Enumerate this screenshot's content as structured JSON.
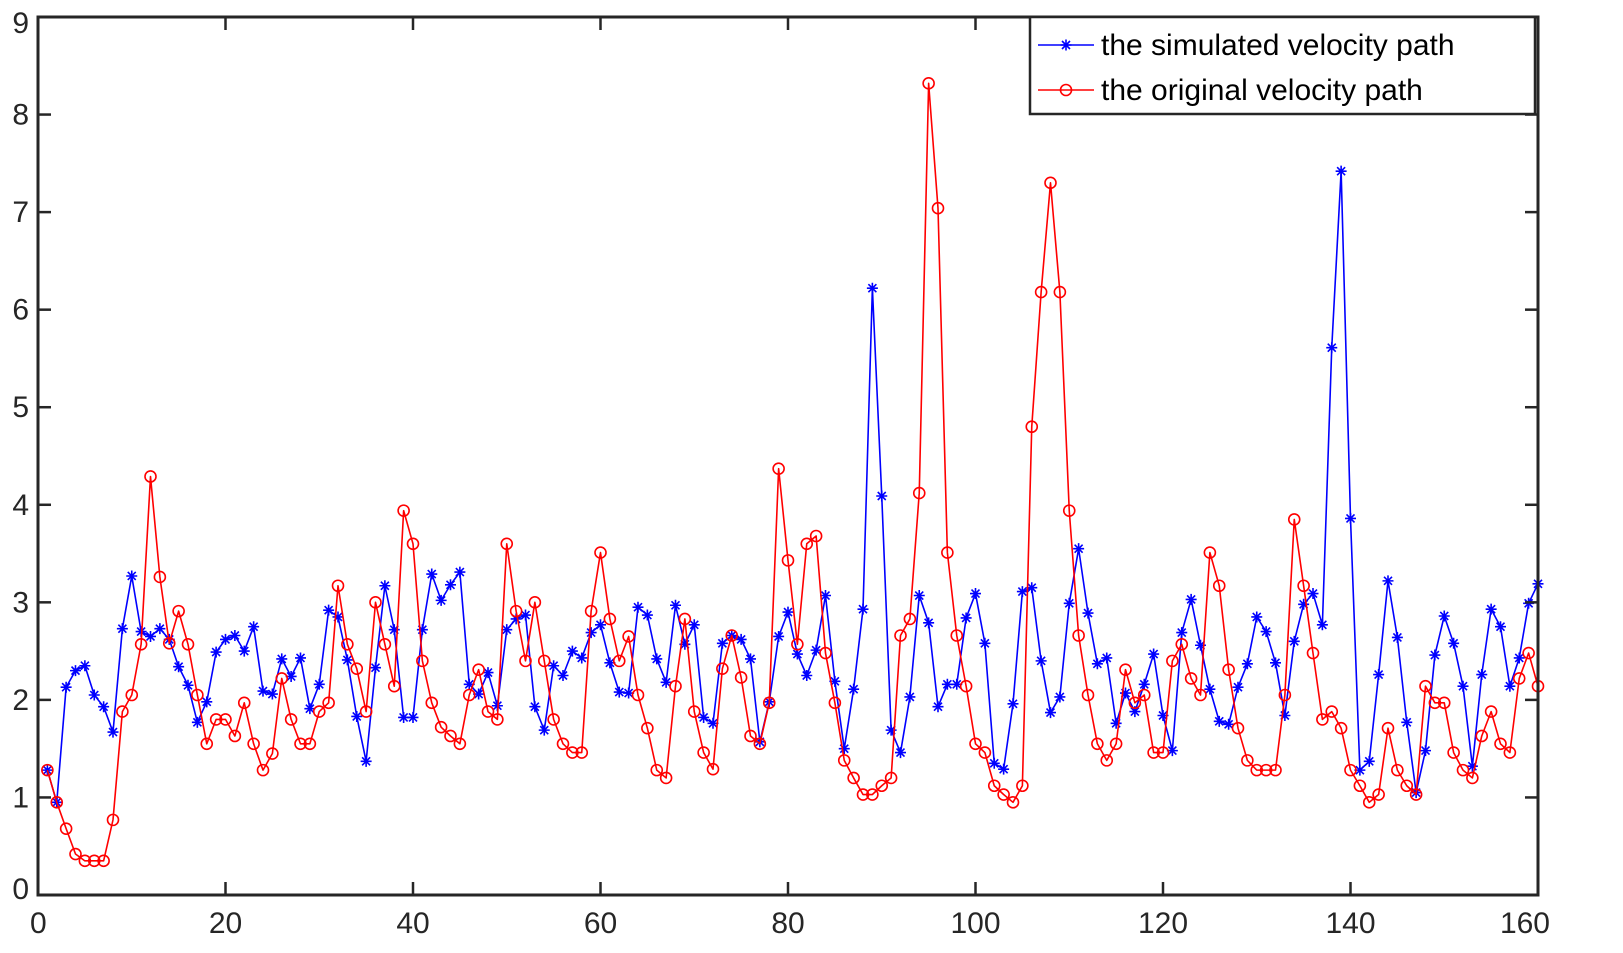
{
  "chart_data": {
    "type": "line",
    "title": "",
    "xlabel": "",
    "ylabel": "",
    "xlim": [
      0,
      160
    ],
    "ylim": [
      0,
      9
    ],
    "grid": false,
    "legend_position": "top-right",
    "x_ticks": [
      0,
      20,
      40,
      60,
      80,
      100,
      120,
      140,
      160
    ],
    "x_tick_labels": [
      "0",
      "20",
      "40",
      "60",
      "80",
      "100",
      "120",
      "140",
      "160"
    ],
    "y_ticks": [
      0,
      1,
      2,
      3,
      4,
      5,
      6,
      7,
      8,
      9
    ],
    "y_tick_labels": [
      "0",
      "1",
      "2",
      "3",
      "4",
      "5",
      "6",
      "7",
      "8",
      "9"
    ],
    "series": [
      {
        "name": "the simulated velocity path",
        "color": "#0000ff",
        "marker": "asterisk",
        "x_start": 1,
        "values": [
          1.28,
          0.95,
          2.13,
          2.3,
          2.35,
          2.05,
          1.93,
          1.67,
          2.73,
          3.27,
          2.7,
          2.65,
          2.73,
          2.62,
          2.34,
          2.15,
          1.77,
          1.98,
          2.49,
          2.62,
          2.66,
          2.5,
          2.75,
          2.09,
          2.06,
          2.42,
          2.24,
          2.43,
          1.91,
          2.16,
          2.92,
          2.85,
          2.41,
          1.83,
          1.37,
          2.33,
          3.17,
          2.72,
          1.82,
          1.82,
          2.72,
          3.29,
          3.02,
          3.18,
          3.31,
          2.16,
          2.06,
          2.28,
          1.94,
          2.72,
          2.83,
          2.87,
          1.93,
          1.69,
          2.35,
          2.25,
          2.5,
          2.43,
          2.69,
          2.77,
          2.38,
          2.08,
          2.07,
          2.95,
          2.87,
          2.42,
          2.18,
          2.97,
          2.57,
          2.77,
          1.82,
          1.76,
          2.58,
          2.66,
          2.62,
          2.42,
          1.57,
          1.98,
          2.65,
          2.9,
          2.47,
          2.25,
          2.51,
          3.07,
          2.19,
          1.5,
          2.11,
          2.93,
          6.22,
          4.09,
          1.69,
          1.46,
          2.03,
          3.07,
          2.79,
          1.93,
          2.16,
          2.16,
          2.84,
          3.09,
          2.58,
          1.35,
          1.29,
          1.96,
          3.11,
          3.15,
          2.4,
          1.87,
          2.03,
          2.99,
          3.55,
          2.89,
          2.37,
          2.43,
          1.76,
          2.07,
          1.88,
          2.16,
          2.47,
          1.84,
          1.48,
          2.69,
          3.03,
          2.56,
          2.11,
          1.78,
          1.75,
          2.13,
          2.37,
          2.85,
          2.7,
          2.38,
          1.84,
          2.6,
          2.98,
          3.09,
          2.77,
          5.61,
          7.42,
          3.86,
          1.28,
          1.37,
          2.26,
          3.22,
          2.64,
          1.77,
          1.05,
          1.48,
          2.46,
          2.86,
          2.58,
          2.14,
          1.32,
          2.26,
          2.93,
          2.75,
          2.14,
          2.43,
          2.99,
          3.19
        ]
      },
      {
        "name": "the original velocity path",
        "color": "#ff0000",
        "marker": "circle",
        "x_start": 1,
        "values": [
          1.28,
          0.95,
          0.68,
          0.42,
          0.35,
          0.35,
          0.35,
          0.77,
          1.88,
          2.05,
          2.57,
          4.29,
          3.26,
          2.58,
          2.91,
          2.57,
          2.05,
          1.55,
          1.8,
          1.8,
          1.63,
          1.97,
          1.55,
          1.28,
          1.45,
          2.22,
          1.8,
          1.55,
          1.55,
          1.88,
          1.97,
          3.17,
          2.57,
          2.32,
          1.88,
          3.0,
          2.57,
          2.14,
          3.94,
          3.6,
          2.4,
          1.97,
          1.72,
          1.63,
          1.55,
          2.05,
          2.31,
          1.88,
          1.8,
          3.6,
          2.91,
          2.4,
          3.0,
          2.4,
          1.8,
          1.55,
          1.46,
          1.46,
          2.91,
          3.51,
          2.83,
          2.4,
          2.65,
          2.05,
          1.71,
          1.28,
          1.2,
          2.14,
          2.83,
          1.88,
          1.46,
          1.29,
          2.32,
          2.66,
          2.23,
          1.63,
          1.55,
          1.97,
          4.37,
          3.43,
          2.57,
          3.6,
          3.68,
          2.48,
          1.97,
          1.38,
          1.2,
          1.03,
          1.03,
          1.12,
          1.2,
          2.66,
          2.83,
          4.12,
          8.32,
          7.04,
          3.51,
          2.66,
          2.14,
          1.55,
          1.46,
          1.12,
          1.03,
          0.95,
          1.12,
          4.8,
          6.18,
          7.3,
          6.18,
          3.94,
          2.66,
          2.05,
          1.55,
          1.38,
          1.55,
          2.31,
          1.97,
          2.05,
          1.46,
          1.46,
          2.4,
          2.57,
          2.22,
          2.05,
          3.51,
          3.17,
          2.31,
          1.71,
          1.38,
          1.28,
          1.28,
          1.28,
          2.05,
          3.85,
          3.17,
          2.48,
          1.8,
          1.88,
          1.71,
          1.28,
          1.12,
          0.95,
          1.03,
          1.71,
          1.28,
          1.12,
          1.03,
          2.14,
          1.97,
          1.97,
          1.46,
          1.28,
          1.2,
          1.63,
          1.88,
          1.55,
          1.46,
          2.22,
          2.48,
          2.14
        ]
      }
    ]
  }
}
